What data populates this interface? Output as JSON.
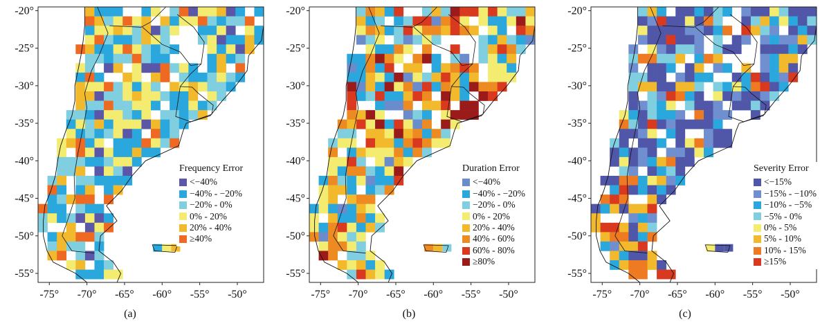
{
  "map": {
    "lon_ticks": [
      "-75°",
      "-70°",
      "-65°",
      "-60°",
      "-55°",
      "-50°"
    ],
    "lat_ticks": [
      "-20°",
      "-25°",
      "-30°",
      "-35°",
      "-40°",
      "-45°",
      "-50°",
      "-55°"
    ],
    "lon_range": [
      -76.5,
      -46.5
    ],
    "lat_range": [
      -56.2,
      -19.5
    ],
    "cell_deg": 1.25
  },
  "panels": [
    {
      "id": "a",
      "caption": "(a)",
      "legend_title": "Frequency Error",
      "legend": [
        {
          "label": "<−40%",
          "color": "#5b57a8"
        },
        {
          "label": "−40% - −20%",
          "color": "#2aa7dc"
        },
        {
          "label": "−20% - 0%",
          "color": "#7fcfe0"
        },
        {
          "label": "0% - 20%",
          "color": "#f3ec70"
        },
        {
          "label": "20% - 40%",
          "color": "#f2b92c"
        },
        {
          "label": "≥40%",
          "color": "#ee6a22"
        }
      ],
      "weights": [
        1,
        3,
        3,
        2.5,
        1.6,
        1.2
      ]
    },
    {
      "id": "b",
      "caption": "(b)",
      "legend_title": "Duration Error",
      "legend": [
        {
          "label": "<−40%",
          "color": "#6b8ccc"
        },
        {
          "label": "−40% - −20%",
          "color": "#2aa7dc"
        },
        {
          "label": "−20% - 0%",
          "color": "#7fcfe0"
        },
        {
          "label": "0% - 20%",
          "color": "#f3ec70"
        },
        {
          "label": "20% - 40%",
          "color": "#f2b92c"
        },
        {
          "label": "40% - 60%",
          "color": "#ee8a22"
        },
        {
          "label": "60% - 80%",
          "color": "#d9391e"
        },
        {
          "label": "≥80%",
          "color": "#9b1b1b"
        }
      ],
      "weights": [
        0.6,
        2.6,
        1.6,
        2.4,
        1.8,
        1.4,
        1.0,
        0.8
      ]
    },
    {
      "id": "c",
      "caption": "(c)",
      "legend_title": "Severity Error",
      "legend": [
        {
          "label": "<−15%",
          "color": "#5157a8"
        },
        {
          "label": "−15% - −10%",
          "color": "#6f8fd0"
        },
        {
          "label": "−10% - −5%",
          "color": "#2aa7dc"
        },
        {
          "label": "−5% - 0%",
          "color": "#7fcfe0"
        },
        {
          "label": "0% - 5%",
          "color": "#f3ec70"
        },
        {
          "label": "5% - 10%",
          "color": "#f2b92c"
        },
        {
          "label": "10% - 15%",
          "color": "#ee7a22"
        },
        {
          "label": "≥15%",
          "color": "#d9391e"
        }
      ],
      "weights": [
        4,
        1.6,
        1.6,
        1.0,
        0.8,
        0.8,
        0.6,
        0.7
      ]
    }
  ]
}
